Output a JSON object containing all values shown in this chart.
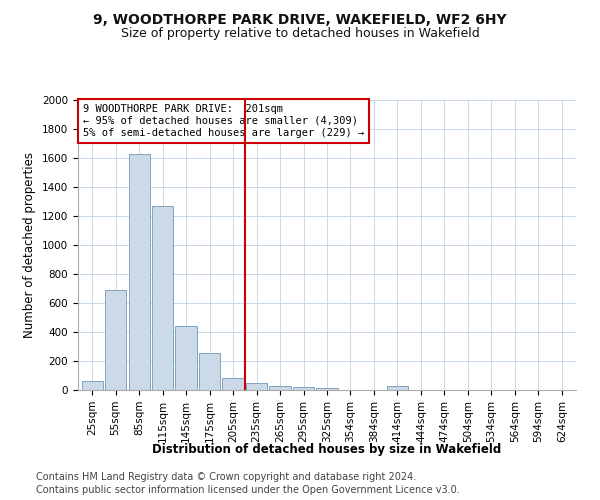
{
  "title1": "9, WOODTHORPE PARK DRIVE, WAKEFIELD, WF2 6HY",
  "title2": "Size of property relative to detached houses in Wakefield",
  "xlabel": "Distribution of detached houses by size in Wakefield",
  "ylabel": "Number of detached properties",
  "categories": [
    "25sqm",
    "55sqm",
    "85sqm",
    "115sqm",
    "145sqm",
    "175sqm",
    "205sqm",
    "235sqm",
    "265sqm",
    "295sqm",
    "325sqm",
    "354sqm",
    "384sqm",
    "414sqm",
    "444sqm",
    "474sqm",
    "504sqm",
    "534sqm",
    "564sqm",
    "594sqm",
    "624sqm"
  ],
  "values": [
    65,
    690,
    1630,
    1270,
    440,
    255,
    80,
    50,
    30,
    20,
    15,
    0,
    0,
    30,
    0,
    0,
    0,
    0,
    0,
    0,
    0
  ],
  "bar_color": "#ccd9e8",
  "bar_edge_color": "#7099b8",
  "vline_index": 6,
  "annotation_line1": "9 WOODTHORPE PARK DRIVE:  201sqm",
  "annotation_line2": "← 95% of detached houses are smaller (4,309)",
  "annotation_line3": "5% of semi-detached houses are larger (229) →",
  "annotation_box_color": "#ffffff",
  "annotation_box_edge_color": "#cc0000",
  "vline_color": "#cc0000",
  "ylim": [
    0,
    2000
  ],
  "yticks": [
    0,
    200,
    400,
    600,
    800,
    1000,
    1200,
    1400,
    1600,
    1800,
    2000
  ],
  "footnote1": "Contains HM Land Registry data © Crown copyright and database right 2024.",
  "footnote2": "Contains public sector information licensed under the Open Government Licence v3.0.",
  "bg_color": "#ffffff",
  "plot_bg_color": "#ffffff",
  "grid_color": "#c8d8e8",
  "title1_fontsize": 10,
  "title2_fontsize": 9,
  "axis_label_fontsize": 8.5,
  "tick_fontsize": 7.5,
  "annotation_fontsize": 7.5,
  "footnote_fontsize": 7
}
